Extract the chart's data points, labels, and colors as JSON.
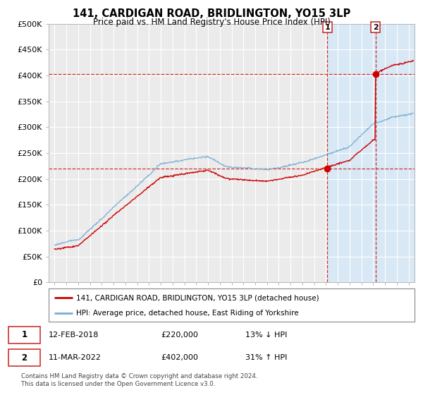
{
  "title": "141, CARDIGAN ROAD, BRIDLINGTON, YO15 3LP",
  "subtitle": "Price paid vs. HM Land Registry's House Price Index (HPI)",
  "legend_line1": "141, CARDIGAN ROAD, BRIDLINGTON, YO15 3LP (detached house)",
  "legend_line2": "HPI: Average price, detached house, East Riding of Yorkshire",
  "annotation1_date": "12-FEB-2018",
  "annotation1_price": "£220,000",
  "annotation1_hpi": "13% ↓ HPI",
  "annotation2_date": "11-MAR-2022",
  "annotation2_price": "£402,000",
  "annotation2_hpi": "31% ↑ HPI",
  "footnote": "Contains HM Land Registry data © Crown copyright and database right 2024.\nThis data is licensed under the Open Government Licence v3.0.",
  "xlim": [
    1994.5,
    2025.5
  ],
  "ylim": [
    0,
    500000
  ],
  "yticks": [
    0,
    50000,
    100000,
    150000,
    200000,
    250000,
    300000,
    350000,
    400000,
    450000,
    500000
  ],
  "ytick_labels": [
    "£0",
    "£50K",
    "£100K",
    "£150K",
    "£200K",
    "£250K",
    "£300K",
    "£350K",
    "£400K",
    "£450K",
    "£500K"
  ],
  "red_color": "#cc0000",
  "blue_color": "#7aadd4",
  "background_color": "#ffffff",
  "plot_bg_color": "#ebebeb",
  "grid_color": "#ffffff",
  "highlight_color": "#d8e8f5",
  "marker1_x": 2018.12,
  "marker1_y": 220000,
  "marker2_x": 2022.19,
  "marker2_y": 402000,
  "highlight1_xmin": 2018.12,
  "highlight1_xmax": 2022.19,
  "highlight2_xmin": 2022.19,
  "highlight2_xmax": 2025.5
}
